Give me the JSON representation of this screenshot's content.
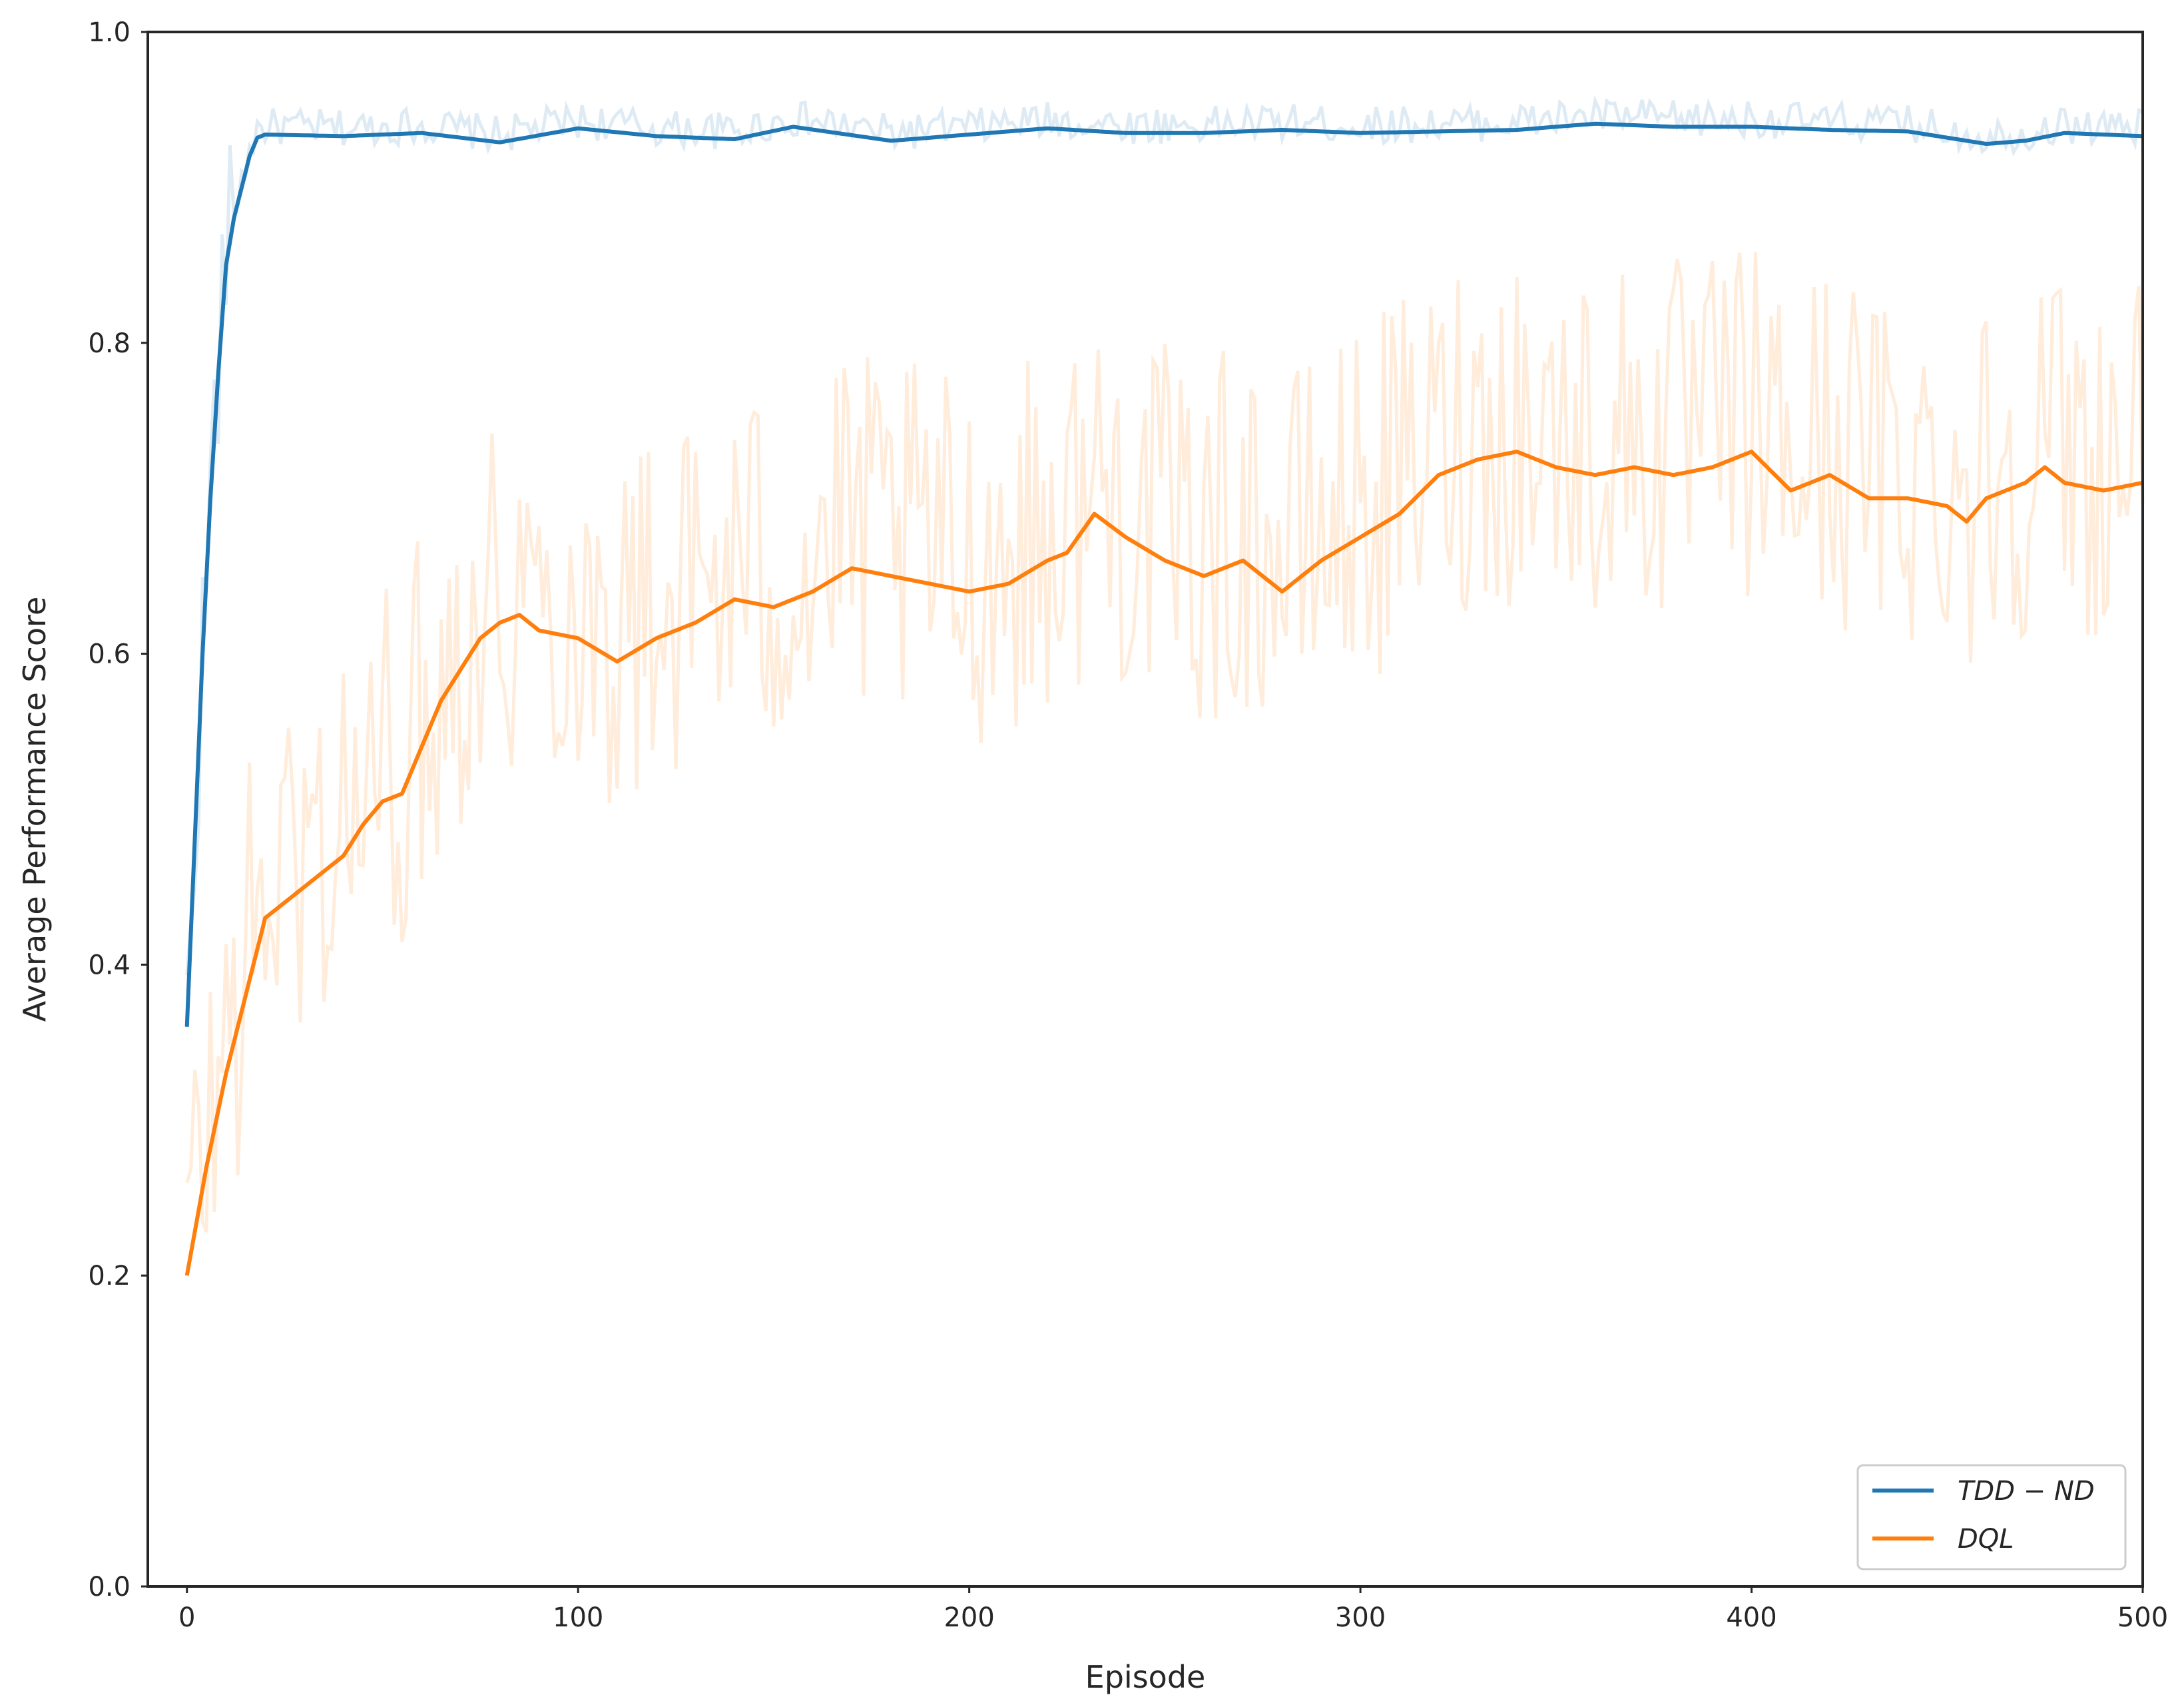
{
  "chart_data": {
    "type": "line",
    "title": "",
    "xlabel": "Episode",
    "ylabel": "Average Performance Score",
    "xlim": [
      -10,
      500
    ],
    "ylim": [
      0.0,
      1.0
    ],
    "x_ticks": [
      0,
      100,
      200,
      300,
      400,
      500
    ],
    "y_ticks": [
      0.0,
      0.2,
      0.4,
      0.6,
      0.8,
      1.0
    ],
    "x_tick_labels": [
      "0",
      "100",
      "200",
      "300",
      "400",
      "500"
    ],
    "y_tick_labels": [
      "0.0",
      "0.2",
      "0.4",
      "0.6",
      "0.8",
      "1.0"
    ],
    "grid": false,
    "legend_position": "bottom-right",
    "series": [
      {
        "name": "TDD − ND",
        "legend_label": "TDD − ND",
        "color": "#1f77b4",
        "raw_alpha": 0.15,
        "smoothed": [
          [
            0,
            0.36
          ],
          [
            2,
            0.48
          ],
          [
            4,
            0.6
          ],
          [
            6,
            0.7
          ],
          [
            8,
            0.78
          ],
          [
            10,
            0.85
          ],
          [
            12,
            0.88
          ],
          [
            14,
            0.9
          ],
          [
            16,
            0.92
          ],
          [
            18,
            0.932
          ],
          [
            20,
            0.934
          ],
          [
            40,
            0.933
          ],
          [
            60,
            0.935
          ],
          [
            80,
            0.929
          ],
          [
            100,
            0.938
          ],
          [
            120,
            0.933
          ],
          [
            140,
            0.931
          ],
          [
            155,
            0.939
          ],
          [
            180,
            0.93
          ],
          [
            200,
            0.934
          ],
          [
            220,
            0.938
          ],
          [
            240,
            0.935
          ],
          [
            260,
            0.935
          ],
          [
            280,
            0.937
          ],
          [
            300,
            0.935
          ],
          [
            320,
            0.936
          ],
          [
            340,
            0.937
          ],
          [
            360,
            0.941
          ],
          [
            380,
            0.939
          ],
          [
            400,
            0.939
          ],
          [
            420,
            0.937
          ],
          [
            440,
            0.936
          ],
          [
            460,
            0.928
          ],
          [
            470,
            0.93
          ],
          [
            480,
            0.935
          ],
          [
            500,
            0.933
          ]
        ]
      },
      {
        "name": "DQL",
        "legend_label": "DQL",
        "color": "#ff7f0e",
        "raw_alpha": 0.15,
        "smoothed": [
          [
            0,
            0.2
          ],
          [
            5,
            0.27
          ],
          [
            10,
            0.33
          ],
          [
            15,
            0.38
          ],
          [
            20,
            0.43
          ],
          [
            25,
            0.44
          ],
          [
            30,
            0.45
          ],
          [
            35,
            0.46
          ],
          [
            40,
            0.47
          ],
          [
            45,
            0.49
          ],
          [
            50,
            0.505
          ],
          [
            55,
            0.51
          ],
          [
            60,
            0.54
          ],
          [
            65,
            0.57
          ],
          [
            70,
            0.59
          ],
          [
            75,
            0.61
          ],
          [
            80,
            0.62
          ],
          [
            85,
            0.625
          ],
          [
            90,
            0.615
          ],
          [
            100,
            0.61
          ],
          [
            110,
            0.595
          ],
          [
            120,
            0.61
          ],
          [
            130,
            0.62
          ],
          [
            140,
            0.635
          ],
          [
            150,
            0.63
          ],
          [
            160,
            0.64
          ],
          [
            170,
            0.655
          ],
          [
            180,
            0.65
          ],
          [
            190,
            0.645
          ],
          [
            200,
            0.64
          ],
          [
            210,
            0.645
          ],
          [
            220,
            0.66
          ],
          [
            225,
            0.665
          ],
          [
            232,
            0.69
          ],
          [
            240,
            0.675
          ],
          [
            250,
            0.66
          ],
          [
            260,
            0.65
          ],
          [
            270,
            0.66
          ],
          [
            280,
            0.64
          ],
          [
            290,
            0.66
          ],
          [
            300,
            0.675
          ],
          [
            310,
            0.69
          ],
          [
            320,
            0.715
          ],
          [
            330,
            0.725
          ],
          [
            340,
            0.73
          ],
          [
            350,
            0.72
          ],
          [
            360,
            0.715
          ],
          [
            370,
            0.72
          ],
          [
            380,
            0.715
          ],
          [
            390,
            0.72
          ],
          [
            400,
            0.73
          ],
          [
            410,
            0.705
          ],
          [
            420,
            0.715
          ],
          [
            430,
            0.7
          ],
          [
            440,
            0.7
          ],
          [
            450,
            0.695
          ],
          [
            455,
            0.685
          ],
          [
            460,
            0.7
          ],
          [
            470,
            0.71
          ],
          [
            475,
            0.72
          ],
          [
            480,
            0.71
          ],
          [
            490,
            0.705
          ],
          [
            500,
            0.71
          ]
        ]
      }
    ]
  }
}
